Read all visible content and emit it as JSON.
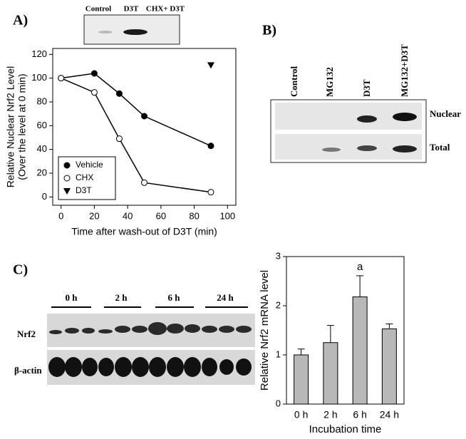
{
  "panel_labels": [
    "A)",
    "B)",
    "C)"
  ],
  "blot_a": {
    "lanes": [
      "Control",
      "D3T",
      "CHX+ D3T"
    ]
  },
  "blot_b": {
    "lanes": [
      "Control",
      "MG132",
      "D3T",
      "MG132+D3T"
    ],
    "rows": [
      "Nuclear",
      "Total"
    ]
  },
  "blot_c": {
    "lanes": [
      "0 h",
      "2 h",
      "6 h",
      "24 h"
    ],
    "rows": [
      "Nrf2",
      "β-actin"
    ]
  },
  "chart_data": [
    {
      "type": "line",
      "xlabel": "Time after wash-out of D3T (min)",
      "ylabel": [
        "Relative Nuclear Nrf2 Level",
        "(Over the level at 0 min)"
      ],
      "series": [
        {
          "name": "Vehicle",
          "color": "#000000",
          "marker": "filled-circle",
          "x": [
            0,
            20,
            35,
            50,
            90
          ],
          "values": [
            100,
            104,
            87,
            68,
            43
          ]
        },
        {
          "name": "CHX",
          "color": "#000000",
          "marker": "open-circle",
          "x": [
            0,
            20,
            35,
            50,
            90
          ],
          "values": [
            100,
            88,
            49,
            12,
            4
          ]
        },
        {
          "name": "D3T",
          "color": "#000000",
          "marker": "triangle",
          "line": false,
          "x": [
            90
          ],
          "values": [
            111
          ]
        }
      ],
      "xlim": [
        -5,
        105
      ],
      "xticks": [
        0,
        20,
        40,
        60,
        80,
        100
      ],
      "ylim": [
        -7,
        125
      ],
      "yticks": [
        0,
        20,
        40,
        60,
        80,
        100,
        120
      ],
      "legend": "lower left"
    },
    {
      "type": "bar",
      "xlabel": "Incubation time",
      "ylabel": "Relative Nrf2 mRNA level",
      "categories": [
        "0 h",
        "2 h",
        "6 h",
        "24 h"
      ],
      "values": [
        1.0,
        1.25,
        2.18,
        1.53
      ],
      "errors": [
        0.12,
        0.35,
        0.43,
        0.1
      ],
      "color": "#b8b8b8",
      "annotations": [
        {
          "text": "a",
          "x": "6 h"
        }
      ],
      "ylim": [
        0,
        3
      ],
      "yticks": [
        0,
        1,
        2,
        3
      ]
    }
  ]
}
